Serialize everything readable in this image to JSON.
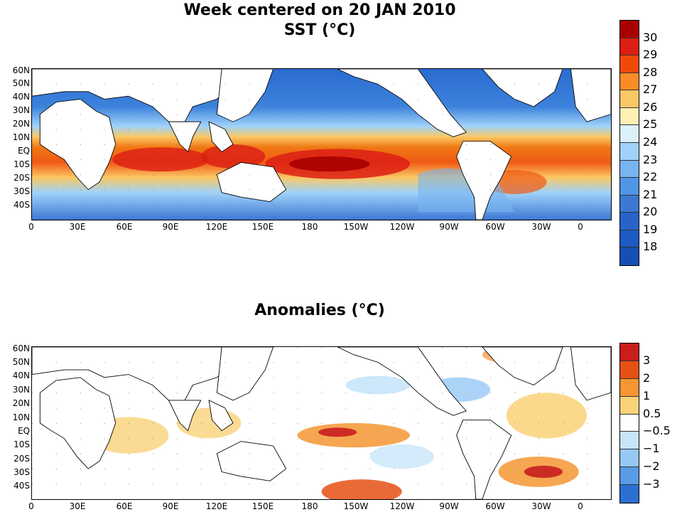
{
  "titles": {
    "main": "Week centered on 20 JAN 2010",
    "sst": "SST (°C)",
    "anomalies": "Anomalies (°C)"
  },
  "lat_labels": [
    "60N",
    "50N",
    "40N",
    "30N",
    "20N",
    "10N",
    "EQ",
    "10S",
    "20S",
    "30S",
    "40S"
  ],
  "lon_labels": [
    "0",
    "30E",
    "60E",
    "90E",
    "120E",
    "150E",
    "180",
    "150W",
    "120W",
    "90W",
    "60W",
    "30W",
    "0"
  ],
  "sst_colorbar": {
    "labels": [
      "30",
      "29",
      "28",
      "27",
      "26",
      "25",
      "24",
      "23",
      "22",
      "21",
      "20",
      "19",
      "18"
    ],
    "colors": [
      "#a80000",
      "#dc1e14",
      "#f04a0a",
      "#fa8c28",
      "#fac864",
      "#fff0b4",
      "#dcf0fa",
      "#a0d2fa",
      "#78b4f0",
      "#5096e6",
      "#3c78d2",
      "#2864c8",
      "#1e5ac3",
      "#1450b4"
    ]
  },
  "anomaly_colorbar": {
    "labels": [
      "3",
      "2",
      "1",
      "0.5",
      "−0.5",
      "−1",
      "−2",
      "−3"
    ],
    "colors": [
      "#c81e1e",
      "#e65014",
      "#f59632",
      "#fad278",
      "#ffffff",
      "#c8e6fa",
      "#96c8f5",
      "#5a9be6",
      "#2d6ed2"
    ]
  },
  "ocean_colors": {
    "land": "#ffffff",
    "cold": "#2d6ed2",
    "neutral": "#ffffff"
  }
}
